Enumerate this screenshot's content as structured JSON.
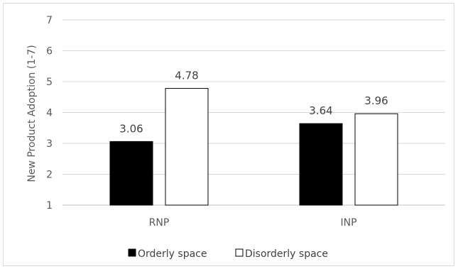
{
  "chart_data": {
    "type": "bar",
    "title": "",
    "ylabel": "New Product Adoption (1-7)",
    "xlabel": "",
    "ylim": [
      1,
      7
    ],
    "yticks": [
      "1",
      "2",
      "3",
      "4",
      "5",
      "6",
      "7"
    ],
    "categories": [
      "RNP",
      "INP"
    ],
    "series": [
      {
        "name": "Orderly space",
        "values": [
          3.06,
          3.64
        ],
        "labels": [
          "3.06",
          "3.64"
        ],
        "color": "#000000"
      },
      {
        "name": "Disorderly space",
        "values": [
          4.78,
          3.96
        ],
        "labels": [
          "4.78",
          "3.96"
        ],
        "color": "#ffffff"
      }
    ],
    "grid": true,
    "legend_position": "bottom"
  }
}
